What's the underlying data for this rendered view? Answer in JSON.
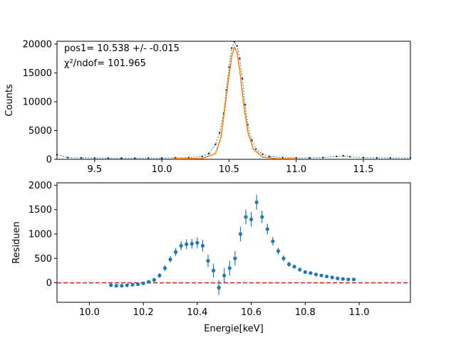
{
  "colors": {
    "data": "#1f77b4",
    "fit": "#ff7f0e",
    "zero_line": "#d62728",
    "axis": "#000000"
  },
  "chart_data": [
    {
      "type": "scatter",
      "panel": "top",
      "ylabel": "Counts",
      "xlim": [
        9.22,
        11.85
      ],
      "ylim": [
        0,
        20500
      ],
      "xticks": [
        "9.5",
        "10.0",
        "10.5",
        "11.0",
        "11.5"
      ],
      "xtick_values": [
        9.5,
        10.0,
        10.5,
        11.0,
        11.5
      ],
      "yticks": [
        "0",
        "5000",
        "10000",
        "15000",
        "20000"
      ],
      "ytick_values": [
        0,
        5000,
        10000,
        15000,
        20000
      ],
      "annotations": {
        "pos_label": "pos1= 10.538 +/- -0.015",
        "chi_label": "χ²/ndof= 101.965"
      },
      "data_series": {
        "x": [
          9.22,
          9.3,
          9.4,
          9.5,
          9.6,
          9.7,
          9.8,
          9.9,
          10.0,
          10.1,
          10.2,
          10.3,
          10.35,
          10.4,
          10.43,
          10.46,
          10.48,
          10.5,
          10.52,
          10.54,
          10.56,
          10.58,
          10.6,
          10.62,
          10.64,
          10.67,
          10.7,
          10.75,
          10.8,
          10.9,
          11.0,
          11.1,
          11.2,
          11.3,
          11.35,
          11.4,
          11.5,
          11.6,
          11.7,
          11.85
        ],
        "y": [
          800,
          300,
          250,
          230,
          220,
          210,
          210,
          210,
          220,
          250,
          300,
          500,
          1000,
          2600,
          4600,
          8000,
          12000,
          16000,
          19300,
          20400,
          19700,
          17500,
          14000,
          9500,
          6000,
          3300,
          1800,
          900,
          500,
          300,
          250,
          250,
          300,
          500,
          600,
          450,
          300,
          250,
          250,
          250
        ]
      },
      "fit_series": {
        "x": [
          10.08,
          10.3,
          10.4,
          10.44,
          10.47,
          10.5,
          10.52,
          10.54,
          10.56,
          10.58,
          10.61,
          10.64,
          10.68,
          10.75,
          10.85,
          11.0
        ],
        "y": [
          100,
          150,
          1000,
          3800,
          9000,
          14500,
          17800,
          19500,
          18600,
          15500,
          9500,
          4800,
          1800,
          400,
          120,
          100
        ]
      }
    },
    {
      "type": "scatter",
      "panel": "bottom",
      "xlabel": "Energie[keV]",
      "ylabel": "Residuen",
      "xlim": [
        9.88,
        11.19
      ],
      "ylim": [
        -400,
        2050
      ],
      "xticks": [
        "10.0",
        "10.2",
        "10.4",
        "10.6",
        "10.8",
        "11.0"
      ],
      "xtick_values": [
        10.0,
        10.2,
        10.4,
        10.6,
        10.8,
        11.0
      ],
      "yticks": [
        "0",
        "500",
        "1000",
        "1500",
        "2000"
      ],
      "ytick_values": [
        0,
        500,
        1000,
        1500,
        2000
      ],
      "reference_line_y": 0,
      "x": [
        10.08,
        10.1,
        10.12,
        10.14,
        10.16,
        10.18,
        10.2,
        10.22,
        10.24,
        10.26,
        10.28,
        10.3,
        10.32,
        10.34,
        10.36,
        10.38,
        10.4,
        10.42,
        10.44,
        10.46,
        10.48,
        10.5,
        10.52,
        10.54,
        10.56,
        10.58,
        10.6,
        10.62,
        10.64,
        10.66,
        10.68,
        10.7,
        10.72,
        10.74,
        10.76,
        10.78,
        10.8,
        10.82,
        10.84,
        10.86,
        10.88,
        10.9,
        10.92,
        10.94,
        10.96,
        10.98
      ],
      "y": [
        -50,
        -60,
        -60,
        -50,
        -40,
        -30,
        -10,
        20,
        60,
        150,
        300,
        480,
        630,
        760,
        790,
        800,
        820,
        760,
        450,
        250,
        -100,
        150,
        300,
        500,
        1000,
        1350,
        1300,
        1650,
        1350,
        1100,
        850,
        650,
        500,
        380,
        330,
        270,
        220,
        200,
        170,
        150,
        130,
        110,
        90,
        80,
        70,
        70
      ],
      "yerr": [
        30,
        30,
        30,
        30,
        30,
        30,
        30,
        30,
        40,
        50,
        60,
        70,
        80,
        90,
        100,
        100,
        110,
        120,
        130,
        140,
        150,
        150,
        150,
        150,
        150,
        150,
        150,
        150,
        130,
        110,
        90,
        70,
        60,
        50,
        40,
        40,
        30,
        30,
        30,
        30,
        30,
        30,
        30,
        30,
        30,
        30
      ]
    }
  ]
}
